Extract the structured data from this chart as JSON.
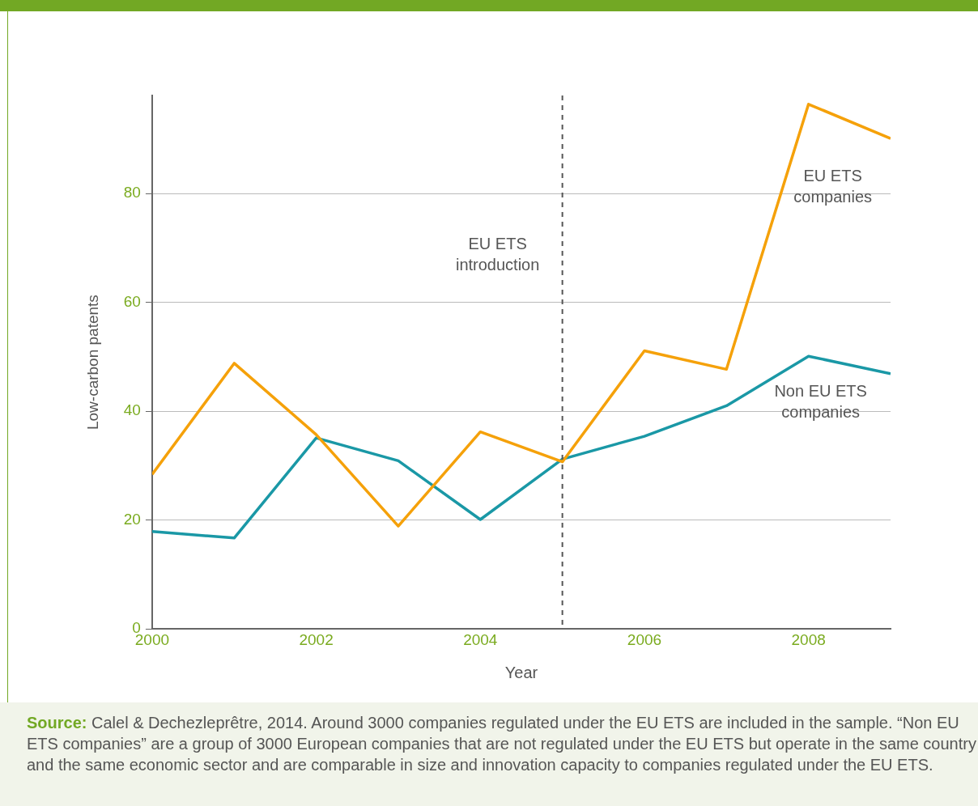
{
  "chart_data": {
    "type": "line",
    "xlabel": "Year",
    "ylabel": "Low-carbon patents",
    "x": [
      2000,
      2001,
      2002,
      2003,
      2004,
      2005,
      2006,
      2007,
      2008,
      2009
    ],
    "series": [
      {
        "name": "EU ETS companies",
        "color": "#f5a10a",
        "values": [
          28.4,
          48.8,
          35.7,
          18.9,
          36.2,
          30.7,
          51.1,
          47.7,
          96.4,
          90.1
        ]
      },
      {
        "name": "Non EU ETS companies",
        "color": "#1a98a6",
        "values": [
          17.9,
          16.7,
          35.1,
          30.9,
          20.1,
          31.2,
          35.4,
          41.0,
          50.1,
          46.9
        ]
      }
    ],
    "xlim": [
      2000,
      2009
    ],
    "xticks": [
      2000,
      2002,
      2004,
      2006,
      2008
    ],
    "ylim": [
      0,
      98
    ],
    "yticks": [
      0,
      20,
      40,
      60,
      80
    ],
    "grid": "y",
    "legend": false,
    "marker": "none",
    "line_style": "solid",
    "ref_lines": [
      {
        "axis": "x",
        "value": 2005,
        "label": "EU ETS introduction",
        "color": "#555555",
        "line_style": "dashed"
      }
    ],
    "annotations": [
      "Source: Calel & Dechezleprêtre, 2014. Around 3000 companies regulated under the EU ETS are included in the sample. “Non EU ETS companies” are a group of 3000 European companies that are not regulated under the EU ETS but operate in the same country and the same economic sector and are comparable in size and innovation capacity to companies regulated under the EU ETS."
    ]
  }
}
